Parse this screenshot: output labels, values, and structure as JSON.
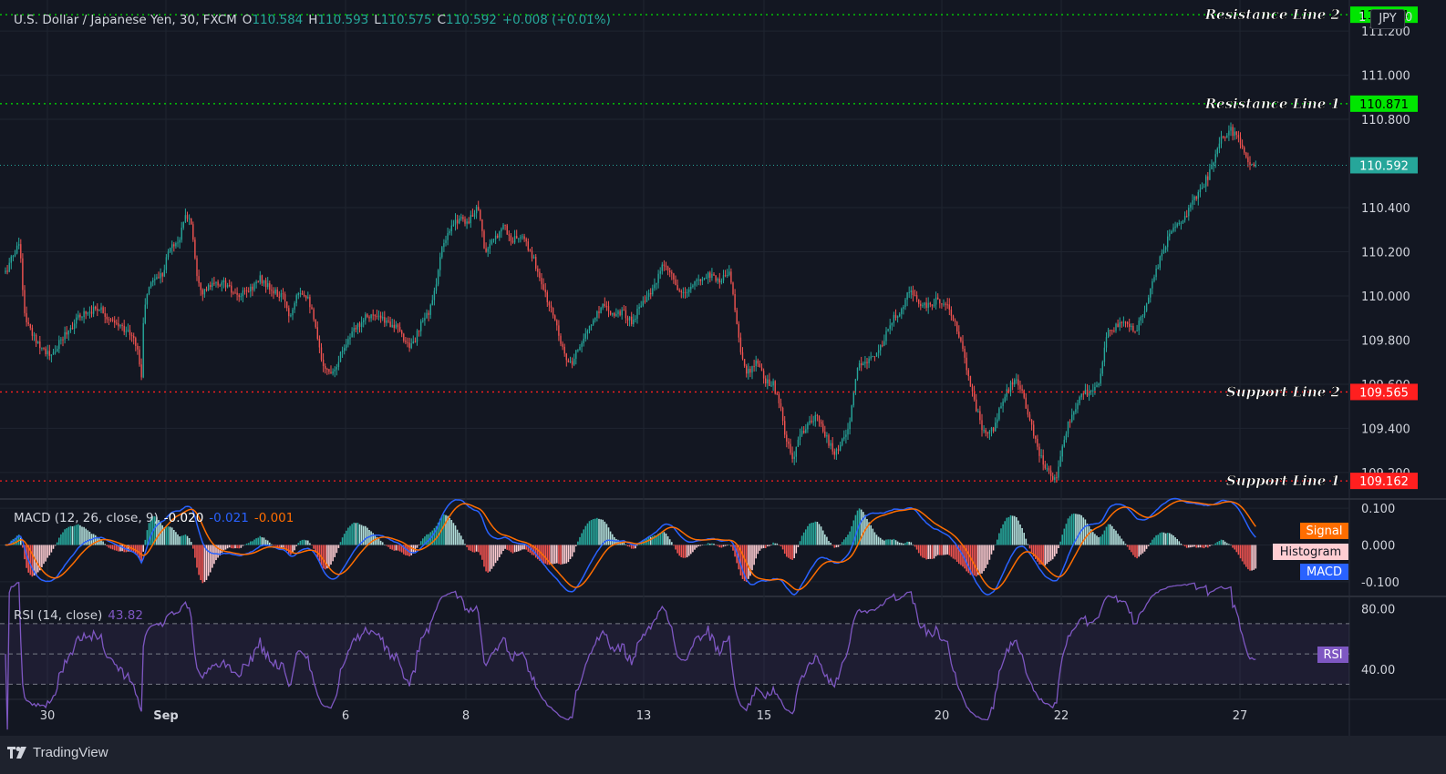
{
  "header": {
    "symbol": "U.S. Dollar / Japanese Yen, 30, FXCM",
    "open_label": "O",
    "open": "110.584",
    "high_label": "H",
    "high": "110.593",
    "low_label": "L",
    "low": "110.575",
    "close_label": "C",
    "close": "110.592",
    "change": "+0.008 (+0.01%)"
  },
  "currency_button": "JPY",
  "axis_top_left": "1",
  "axis_top_right": "0",
  "macd_header": {
    "label": "MACD (12, 26, close, 9)",
    "hist": "-0.020",
    "macd": "-0.021",
    "signal": "-0.001"
  },
  "rsi_header": {
    "label": "RSI (14, close)",
    "value": "43.82"
  },
  "footer": {
    "brand": "TradingView"
  },
  "colors": {
    "up": "#26a69a",
    "down": "#ef5350",
    "background": "#131722",
    "grid": "#1f2430",
    "resistance": "#00e600",
    "support": "#ff1f1f",
    "macd": "#2962ff",
    "signal": "#ff6d00",
    "rsi": "#7e57c2"
  },
  "chart_data": [
    {
      "type": "candlestick",
      "title": "U.S. Dollar / Japanese Yen, 30, FXCM",
      "ylim": [
        109.08,
        111.32
      ],
      "y_ticks": [
        "111.200",
        "111.000",
        "110.800",
        "110.400",
        "110.200",
        "110.000",
        "109.800",
        "109.600",
        "109.400",
        "109.200"
      ],
      "x_ticks": [
        "30",
        "Sep",
        "6",
        "8",
        "13",
        "15",
        "20",
        "22",
        "27"
      ],
      "last_price": 110.592,
      "last_price_label": "110.592",
      "levels": [
        {
          "name": "Resistance Line 2",
          "value": 111.274,
          "label": "111.274",
          "kind": "resistance"
        },
        {
          "name": "Resistance Line 1",
          "value": 110.871,
          "label": "110.871",
          "kind": "resistance"
        },
        {
          "name": "Support Line 2",
          "value": 109.565,
          "label": "109.565",
          "kind": "support"
        },
        {
          "name": "Support Line 1",
          "value": 109.162,
          "label": "109.162",
          "kind": "support"
        }
      ],
      "anchors": [
        [
          0,
          110.05
        ],
        [
          14,
          110.18
        ],
        [
          22,
          110.25
        ],
        [
          26,
          109.93
        ],
        [
          34,
          109.83
        ],
        [
          48,
          109.76
        ],
        [
          56,
          109.72
        ],
        [
          70,
          109.82
        ],
        [
          90,
          109.92
        ],
        [
          110,
          109.95
        ],
        [
          122,
          109.88
        ],
        [
          138,
          109.85
        ],
        [
          150,
          109.78
        ],
        [
          155,
          109.63
        ],
        [
          158,
          109.95
        ],
        [
          166,
          110.07
        ],
        [
          178,
          110.1
        ],
        [
          186,
          110.22
        ],
        [
          196,
          110.25
        ],
        [
          204,
          110.37
        ],
        [
          210,
          110.33
        ],
        [
          216,
          110.1
        ],
        [
          222,
          110.02
        ],
        [
          234,
          110.05
        ],
        [
          246,
          110.06
        ],
        [
          260,
          109.99
        ],
        [
          274,
          110.03
        ],
        [
          286,
          110.08
        ],
        [
          298,
          110.02
        ],
        [
          312,
          109.99
        ],
        [
          318,
          109.9
        ],
        [
          326,
          110.03
        ],
        [
          338,
          110.0
        ],
        [
          346,
          109.85
        ],
        [
          352,
          109.72
        ],
        [
          360,
          109.65
        ],
        [
          368,
          109.68
        ],
        [
          378,
          109.78
        ],
        [
          390,
          109.85
        ],
        [
          402,
          109.92
        ],
        [
          414,
          109.9
        ],
        [
          432,
          109.87
        ],
        [
          444,
          109.8
        ],
        [
          452,
          109.77
        ],
        [
          462,
          109.87
        ],
        [
          474,
          109.96
        ],
        [
          484,
          110.2
        ],
        [
          494,
          110.3
        ],
        [
          504,
          110.36
        ],
        [
          514,
          110.33
        ],
        [
          524,
          110.42
        ],
        [
          532,
          110.2
        ],
        [
          542,
          110.25
        ],
        [
          552,
          110.33
        ],
        [
          560,
          110.25
        ],
        [
          572,
          110.27
        ],
        [
          584,
          110.18
        ],
        [
          594,
          110.06
        ],
        [
          600,
          109.98
        ],
        [
          610,
          109.88
        ],
        [
          620,
          109.72
        ],
        [
          628,
          109.68
        ],
        [
          634,
          109.77
        ],
        [
          642,
          109.82
        ],
        [
          652,
          109.9
        ],
        [
          662,
          109.97
        ],
        [
          672,
          109.92
        ],
        [
          682,
          109.93
        ],
        [
          694,
          109.88
        ],
        [
          704,
          109.98
        ],
        [
          716,
          110.02
        ],
        [
          726,
          110.13
        ],
        [
          736,
          110.1
        ],
        [
          746,
          110.0
        ],
        [
          756,
          110.03
        ],
        [
          766,
          110.07
        ],
        [
          778,
          110.1
        ],
        [
          790,
          110.07
        ],
        [
          800,
          110.12
        ],
        [
          806,
          109.95
        ],
        [
          812,
          109.74
        ],
        [
          820,
          109.65
        ],
        [
          830,
          109.7
        ],
        [
          838,
          109.62
        ],
        [
          848,
          109.6
        ],
        [
          856,
          109.49
        ],
        [
          862,
          109.35
        ],
        [
          870,
          109.25
        ],
        [
          878,
          109.38
        ],
        [
          888,
          109.42
        ],
        [
          896,
          109.45
        ],
        [
          906,
          109.36
        ],
        [
          916,
          109.28
        ],
        [
          924,
          109.35
        ],
        [
          932,
          109.42
        ],
        [
          940,
          109.67
        ],
        [
          948,
          109.7
        ],
        [
          958,
          109.73
        ],
        [
          968,
          109.78
        ],
        [
          976,
          109.87
        ],
        [
          986,
          109.93
        ],
        [
          998,
          110.02
        ],
        [
          1008,
          109.97
        ],
        [
          1018,
          109.95
        ],
        [
          1028,
          109.98
        ],
        [
          1038,
          109.97
        ],
        [
          1046,
          109.89
        ],
        [
          1054,
          109.78
        ],
        [
          1062,
          109.65
        ],
        [
          1070,
          109.5
        ],
        [
          1080,
          109.37
        ],
        [
          1090,
          109.4
        ],
        [
          1098,
          109.5
        ],
        [
          1106,
          109.58
        ],
        [
          1114,
          109.62
        ],
        [
          1122,
          109.55
        ],
        [
          1130,
          109.43
        ],
        [
          1138,
          109.3
        ],
        [
          1150,
          109.2
        ],
        [
          1158,
          109.17
        ],
        [
          1166,
          109.35
        ],
        [
          1176,
          109.47
        ],
        [
          1186,
          109.55
        ],
        [
          1196,
          109.57
        ],
        [
          1206,
          109.62
        ],
        [
          1214,
          109.83
        ],
        [
          1224,
          109.86
        ],
        [
          1234,
          109.88
        ],
        [
          1246,
          109.84
        ],
        [
          1256,
          109.95
        ],
        [
          1266,
          110.1
        ],
        [
          1276,
          110.2
        ],
        [
          1286,
          110.32
        ],
        [
          1296,
          110.35
        ],
        [
          1306,
          110.4
        ],
        [
          1316,
          110.48
        ],
        [
          1326,
          110.55
        ],
        [
          1334,
          110.66
        ],
        [
          1342,
          110.73
        ],
        [
          1350,
          110.75
        ],
        [
          1358,
          110.72
        ],
        [
          1366,
          110.63
        ],
        [
          1372,
          110.58
        ],
        [
          1378,
          110.592
        ]
      ]
    },
    {
      "type": "line",
      "title": "MACD (12, 26, close, 9)",
      "ylim": [
        -0.14,
        0.125
      ],
      "y_ticks": [
        "0.100",
        "0.000",
        "-0.100"
      ],
      "series": [
        {
          "name": "MACD",
          "label": "MACD",
          "color": "#2962ff",
          "derived_from": "price EMA(12) - EMA(26)"
        },
        {
          "name": "Signal",
          "label": "Signal",
          "color": "#ff6d00",
          "derived_from": "EMA(9) of MACD"
        },
        {
          "name": "Histogram",
          "label": "Histogram",
          "derived_from": "MACD - Signal"
        }
      ]
    },
    {
      "type": "line",
      "title": "RSI (14, close)",
      "ylim": [
        20,
        88
      ],
      "y_ticks": [
        "80.00",
        "40.00"
      ],
      "bands": [
        70,
        50,
        30
      ],
      "series": [
        {
          "name": "RSI",
          "label": "RSI",
          "color": "#7e57c2",
          "derived_from": "RSI(14) of price"
        }
      ]
    }
  ]
}
